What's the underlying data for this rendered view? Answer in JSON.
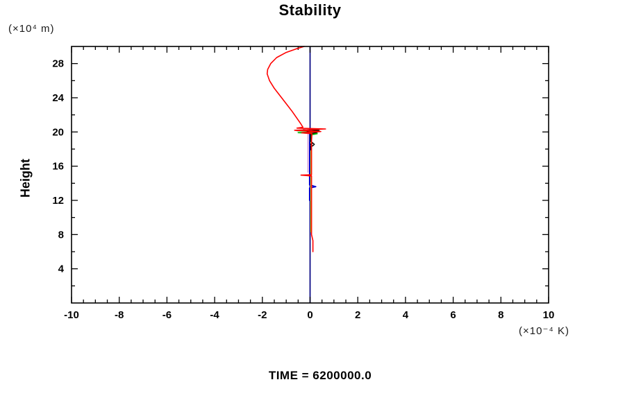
{
  "title": "Stability",
  "y_axis_unit": "(×10⁴ m)",
  "y_axis_label": "Height",
  "x_axis_unit": "(×10⁻⁴ K)",
  "time_caption": "TIME = 6200000.0",
  "colors": {
    "frame": "#000000",
    "zero_line": "#000080",
    "tick": "#000000"
  },
  "chart_data": {
    "type": "line",
    "title": "Stability",
    "xlabel": "(×10⁻⁴ K)",
    "ylabel": "Height (×10⁴ m)",
    "xlim": [
      -10,
      10
    ],
    "ylim": [
      0,
      30
    ],
    "grid": false,
    "legend": "none",
    "zero_line_x": 0,
    "annotation": "TIME = 6200000.0",
    "x_major_ticks": [
      -10,
      -8,
      -6,
      -4,
      -2,
      0,
      2,
      4,
      6,
      8,
      10
    ],
    "x_tick_labels": [
      "-10",
      "-8",
      "-6",
      "-4",
      "-2",
      "0",
      "2",
      "4",
      "6",
      "8",
      "10"
    ],
    "x_minor_step": 0.5,
    "y_major_ticks": [
      4,
      8,
      12,
      16,
      20,
      24,
      28
    ],
    "y_tick_labels": [
      "4",
      "8",
      "12",
      "16",
      "20",
      "24",
      "28"
    ],
    "y_minor_step": 2,
    "series": [
      {
        "name": "plum-profile",
        "color": "#d8a0d8",
        "width": 1.6,
        "points": [
          [
            -0.09,
            20.3
          ],
          [
            -0.09,
            15.3
          ]
        ]
      },
      {
        "name": "blue-profile",
        "color": "#0000cd",
        "width": 1.8,
        "points": [
          [
            -0.02,
            20.3
          ],
          [
            -0.02,
            13.8
          ],
          [
            0.24,
            13.6
          ],
          [
            -0.02,
            13.45
          ],
          [
            -0.02,
            12.0
          ]
        ]
      },
      {
        "name": "green-profile",
        "color": "#00b000",
        "width": 1.6,
        "points": [
          [
            -0.55,
            20.15
          ],
          [
            0.42,
            20.05
          ],
          [
            -0.5,
            19.92
          ],
          [
            0.3,
            19.8
          ],
          [
            0.02,
            19.65
          ],
          [
            0.02,
            18.9
          ]
        ]
      },
      {
        "name": "yellow-profile",
        "color": "#ffff00",
        "width": 1.8,
        "points": [
          [
            0.04,
            19.0
          ],
          [
            0.04,
            8.3
          ]
        ]
      },
      {
        "name": "black-profile",
        "color": "#000000",
        "width": 1.4,
        "points": [
          [
            -0.28,
            20.28
          ],
          [
            0.38,
            20.18
          ],
          [
            -0.12,
            20.05
          ],
          [
            0.3,
            19.95
          ],
          [
            0.03,
            19.8
          ],
          [
            0.03,
            18.9
          ],
          [
            0.1,
            18.75
          ],
          [
            0.18,
            18.55
          ],
          [
            0.1,
            18.35
          ],
          [
            0.02,
            18.55
          ],
          [
            0.1,
            18.75
          ],
          [
            0.03,
            18.3
          ],
          [
            0.03,
            17.9
          ]
        ]
      },
      {
        "name": "red-profile",
        "color": "#ff0000",
        "width": 1.6,
        "points": [
          [
            -0.25,
            30
          ],
          [
            -0.6,
            29.7
          ],
          [
            -1.0,
            29.3
          ],
          [
            -1.4,
            28.7
          ],
          [
            -1.65,
            28.0
          ],
          [
            -1.78,
            27.3
          ],
          [
            -1.8,
            26.8
          ],
          [
            -1.7,
            26.0
          ],
          [
            -1.5,
            25.1
          ],
          [
            -1.25,
            24.2
          ],
          [
            -1.0,
            23.3
          ],
          [
            -0.75,
            22.4
          ],
          [
            -0.55,
            21.6
          ],
          [
            -0.4,
            21.0
          ],
          [
            -0.3,
            20.55
          ],
          [
            -0.55,
            20.45
          ],
          [
            0.65,
            20.35
          ],
          [
            -0.65,
            20.2
          ],
          [
            0.45,
            20.05
          ],
          [
            -0.35,
            19.9
          ],
          [
            0.08,
            19.8
          ],
          [
            0.06,
            19.0
          ],
          [
            0.06,
            15.0
          ],
          [
            -0.38,
            14.95
          ],
          [
            0.06,
            14.85
          ],
          [
            0.06,
            8.0
          ],
          [
            0.12,
            7.3
          ],
          [
            0.12,
            6.0
          ]
        ]
      }
    ]
  }
}
